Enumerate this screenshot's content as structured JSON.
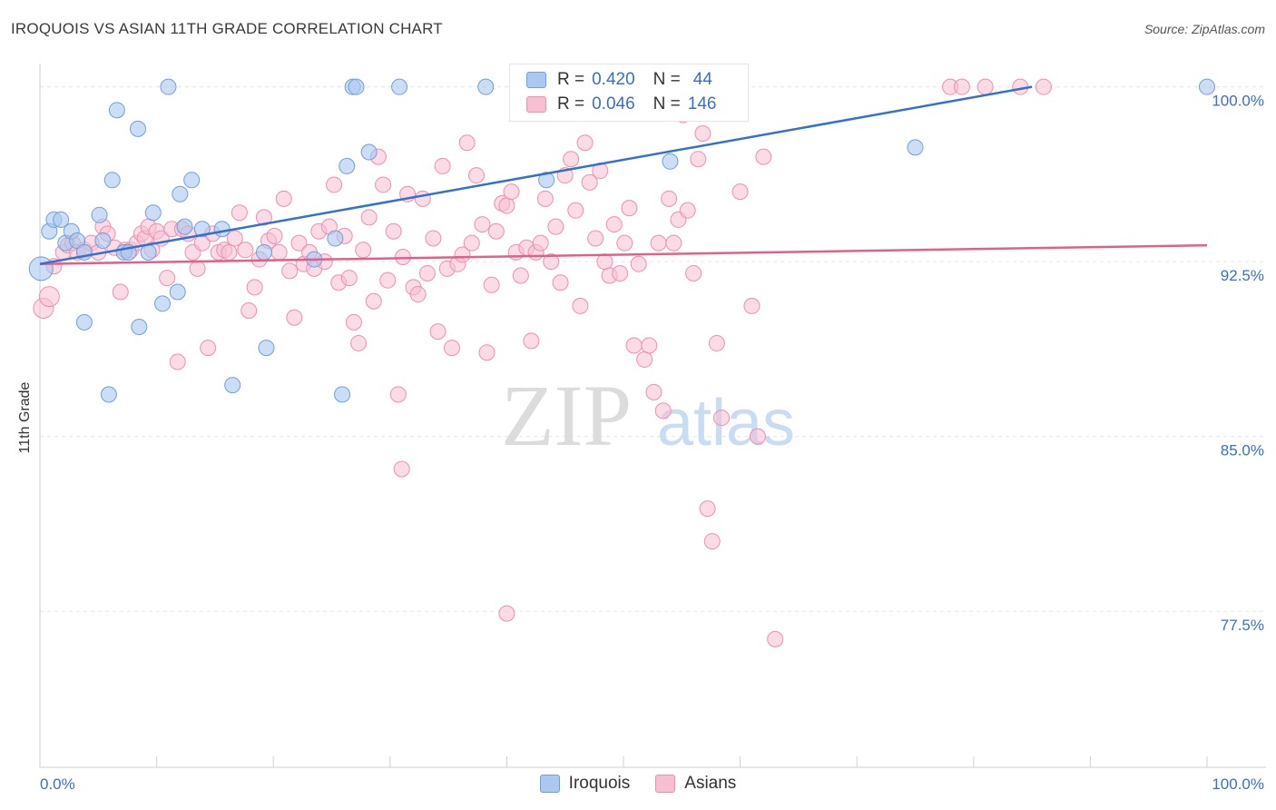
{
  "title": "IROQUOIS VS ASIAN 11TH GRADE CORRELATION CHART",
  "source": "Source: ZipAtlas.com",
  "watermark": {
    "zip": "ZIP",
    "atlas": "atlas"
  },
  "colors": {
    "iroquois_fill": "#aac8f0",
    "iroquois_stroke": "#6f9fdc",
    "iroquois_line": "#3371cc",
    "asians_fill": "#f7bfd1",
    "asians_stroke": "#ee8fae",
    "asians_line": "#e0608c",
    "tick_label": "#3a6fc4",
    "grid": "#e6e6e6"
  },
  "legend": {
    "iroquois": {
      "r_label": "R = ",
      "r_value": "0.420",
      "n_label": "N = ",
      "n_value": "44"
    },
    "asians": {
      "r_label": "R = ",
      "r_value": "0.046",
      "n_label": "N = ",
      "n_value": "146"
    }
  },
  "bottom_legend": {
    "iroquois": "Iroquois",
    "asians": "Asians"
  },
  "chart_data": {
    "type": "scatter",
    "title": "IROQUOIS VS ASIAN 11TH GRADE CORRELATION CHART",
    "xlabel": "",
    "ylabel": "11th Grade",
    "xlim": [
      0,
      100
    ],
    "ylim": [
      70.8,
      101.0
    ],
    "x_tick_labels": [
      "0.0%",
      "100.0%"
    ],
    "y_ticks": [
      77.5,
      85.0,
      92.5,
      100.0
    ],
    "y_tick_labels": [
      "77.5%",
      "85.0%",
      "92.5%",
      "100.0%"
    ],
    "grid": true,
    "legend_position": "top-center",
    "series": [
      {
        "name": "Iroquois",
        "r": 0.42,
        "n": 44,
        "trend": {
          "x": [
            0,
            85
          ],
          "y": [
            92.4,
            100.0
          ]
        },
        "points": [
          [
            0.1,
            92.2
          ],
          [
            0.8,
            93.8
          ],
          [
            1.2,
            94.3
          ],
          [
            1.8,
            94.3
          ],
          [
            2.2,
            93.3
          ],
          [
            2.7,
            93.8
          ],
          [
            3.2,
            93.4
          ],
          [
            3.8,
            92.9
          ],
          [
            3.8,
            89.9
          ],
          [
            5.1,
            94.5
          ],
          [
            5.4,
            93.4
          ],
          [
            5.9,
            86.8
          ],
          [
            6.2,
            96.0
          ],
          [
            6.6,
            99.0
          ],
          [
            7.2,
            92.9
          ],
          [
            7.6,
            92.9
          ],
          [
            8.4,
            98.2
          ],
          [
            8.5,
            89.7
          ],
          [
            9.3,
            92.9
          ],
          [
            9.7,
            94.6
          ],
          [
            10.5,
            90.7
          ],
          [
            11.0,
            100.0
          ],
          [
            11.8,
            91.2
          ],
          [
            12.0,
            95.4
          ],
          [
            12.4,
            94.0
          ],
          [
            13.0,
            96.0
          ],
          [
            13.9,
            93.9
          ],
          [
            15.6,
            93.9
          ],
          [
            16.5,
            87.2
          ],
          [
            19.2,
            92.9
          ],
          [
            19.4,
            88.8
          ],
          [
            23.5,
            92.6
          ],
          [
            25.3,
            93.5
          ],
          [
            25.9,
            86.8
          ],
          [
            26.3,
            96.6
          ],
          [
            26.8,
            100.0
          ],
          [
            27.1,
            100.0
          ],
          [
            28.2,
            97.2
          ],
          [
            30.8,
            100.0
          ],
          [
            38.2,
            100.0
          ],
          [
            43.4,
            96.0
          ],
          [
            54.0,
            96.8
          ],
          [
            75.0,
            97.4
          ],
          [
            100.0,
            100.0
          ]
        ]
      },
      {
        "name": "Asians",
        "r": 0.046,
        "n": 146,
        "trend": {
          "x": [
            0,
            100
          ],
          "y": [
            92.4,
            93.2
          ]
        },
        "points": [
          [
            0.3,
            90.5
          ],
          [
            0.8,
            91.0
          ],
          [
            1.2,
            92.3
          ],
          [
            2.0,
            92.9
          ],
          [
            2.4,
            93.2
          ],
          [
            2.8,
            93.3
          ],
          [
            3.2,
            92.9
          ],
          [
            3.8,
            93.0
          ],
          [
            4.4,
            93.3
          ],
          [
            5.0,
            92.9
          ],
          [
            5.4,
            94.0
          ],
          [
            5.8,
            93.7
          ],
          [
            6.4,
            93.1
          ],
          [
            6.9,
            91.2
          ],
          [
            7.3,
            93.0
          ],
          [
            7.8,
            93.0
          ],
          [
            8.3,
            93.3
          ],
          [
            8.7,
            93.7
          ],
          [
            9.0,
            93.5
          ],
          [
            9.3,
            94.0
          ],
          [
            9.6,
            93.0
          ],
          [
            10.0,
            93.8
          ],
          [
            10.4,
            93.5
          ],
          [
            10.9,
            91.8
          ],
          [
            11.3,
            93.9
          ],
          [
            11.8,
            88.2
          ],
          [
            12.2,
            93.9
          ],
          [
            12.7,
            93.7
          ],
          [
            13.1,
            92.9
          ],
          [
            13.5,
            92.2
          ],
          [
            13.9,
            93.3
          ],
          [
            14.4,
            88.8
          ],
          [
            14.8,
            93.7
          ],
          [
            15.3,
            92.9
          ],
          [
            15.8,
            93.0
          ],
          [
            16.2,
            92.9
          ],
          [
            16.7,
            93.5
          ],
          [
            17.1,
            94.6
          ],
          [
            17.6,
            93.0
          ],
          [
            17.9,
            90.4
          ],
          [
            18.4,
            91.4
          ],
          [
            18.8,
            92.6
          ],
          [
            19.2,
            94.4
          ],
          [
            19.6,
            93.4
          ],
          [
            20.1,
            93.6
          ],
          [
            20.5,
            92.9
          ],
          [
            20.9,
            95.2
          ],
          [
            21.4,
            92.1
          ],
          [
            21.8,
            90.1
          ],
          [
            22.2,
            93.3
          ],
          [
            22.6,
            92.4
          ],
          [
            23.1,
            92.9
          ],
          [
            23.5,
            92.2
          ],
          [
            23.9,
            93.8
          ],
          [
            24.4,
            92.5
          ],
          [
            24.8,
            94.0
          ],
          [
            25.2,
            95.8
          ],
          [
            25.6,
            91.6
          ],
          [
            26.1,
            93.6
          ],
          [
            26.5,
            91.8
          ],
          [
            26.9,
            89.9
          ],
          [
            27.3,
            89.0
          ],
          [
            27.7,
            93.0
          ],
          [
            28.2,
            94.4
          ],
          [
            28.6,
            90.8
          ],
          [
            29.0,
            97.0
          ],
          [
            29.4,
            95.8
          ],
          [
            29.8,
            91.7
          ],
          [
            30.3,
            93.8
          ],
          [
            30.7,
            86.8
          ],
          [
            31.1,
            92.7
          ],
          [
            31.5,
            95.4
          ],
          [
            32.0,
            91.4
          ],
          [
            32.4,
            91.1
          ],
          [
            32.8,
            95.2
          ],
          [
            33.2,
            92.0
          ],
          [
            33.7,
            93.5
          ],
          [
            34.1,
            89.5
          ],
          [
            34.5,
            96.6
          ],
          [
            34.9,
            92.2
          ],
          [
            35.3,
            88.8
          ],
          [
            35.8,
            92.4
          ],
          [
            36.2,
            92.8
          ],
          [
            36.6,
            97.6
          ],
          [
            37.0,
            93.3
          ],
          [
            37.4,
            96.2
          ],
          [
            37.9,
            94.1
          ],
          [
            38.3,
            88.6
          ],
          [
            38.7,
            91.5
          ],
          [
            39.1,
            93.8
          ],
          [
            39.6,
            95.0
          ],
          [
            40.0,
            94.9
          ],
          [
            40.4,
            95.5
          ],
          [
            40.8,
            92.9
          ],
          [
            41.2,
            91.9
          ],
          [
            41.7,
            93.1
          ],
          [
            42.1,
            89.1
          ],
          [
            42.5,
            92.9
          ],
          [
            42.9,
            93.3
          ],
          [
            43.3,
            95.2
          ],
          [
            43.8,
            92.5
          ],
          [
            44.2,
            94.0
          ],
          [
            44.6,
            91.6
          ],
          [
            45.0,
            96.2
          ],
          [
            45.5,
            96.9
          ],
          [
            45.9,
            94.7
          ],
          [
            46.3,
            90.6
          ],
          [
            46.7,
            97.6
          ],
          [
            47.1,
            95.9
          ],
          [
            47.6,
            93.5
          ],
          [
            48.0,
            96.4
          ],
          [
            48.4,
            92.5
          ],
          [
            48.8,
            91.9
          ],
          [
            49.2,
            94.1
          ],
          [
            49.7,
            92.0
          ],
          [
            50.1,
            93.3
          ],
          [
            50.5,
            94.8
          ],
          [
            50.9,
            88.9
          ],
          [
            51.3,
            92.4
          ],
          [
            51.8,
            88.3
          ],
          [
            52.2,
            88.9
          ],
          [
            52.6,
            86.9
          ],
          [
            53.0,
            93.3
          ],
          [
            53.4,
            86.1
          ],
          [
            53.9,
            95.2
          ],
          [
            54.3,
            93.3
          ],
          [
            54.7,
            94.3
          ],
          [
            55.1,
            98.8
          ],
          [
            55.5,
            94.7
          ],
          [
            56.0,
            92.0
          ],
          [
            56.4,
            96.9
          ],
          [
            56.8,
            98.0
          ],
          [
            57.2,
            81.9
          ],
          [
            57.6,
            80.5
          ],
          [
            58.0,
            89.0
          ],
          [
            58.4,
            85.8
          ],
          [
            60.0,
            95.5
          ],
          [
            61.0,
            90.6
          ],
          [
            62.0,
            97.0
          ],
          [
            78.0,
            100.0
          ],
          [
            79.0,
            100.0
          ],
          [
            81.0,
            100.0
          ],
          [
            84.0,
            100.0
          ],
          [
            86.0,
            100.0
          ],
          [
            31.0,
            83.6
          ],
          [
            40.0,
            77.4
          ],
          [
            63.0,
            76.3
          ],
          [
            61.5,
            85.0
          ]
        ]
      }
    ]
  }
}
